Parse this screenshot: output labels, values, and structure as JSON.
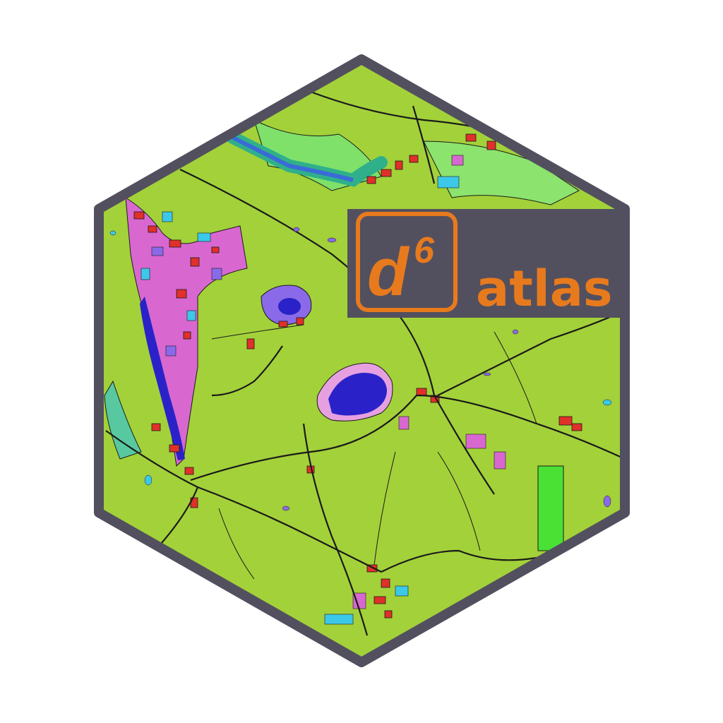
{
  "logo": {
    "letter": "d",
    "superscript": "6",
    "word": "atlas"
  },
  "colors": {
    "background": "#ffffff",
    "hex_border": "#52505e",
    "map_base": "#a3d13a",
    "label_panel": "#52505e",
    "accent_orange": "#e87a1e",
    "water": "#2a22c8",
    "settlement": "#e0302a",
    "road": "#1a1a1a"
  },
  "icons": [
    "hexagon-badge-icon",
    "map-texture-icon"
  ]
}
